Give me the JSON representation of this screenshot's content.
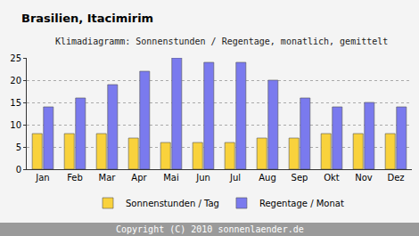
{
  "chart_data": {
    "type": "bar",
    "title": "Brasilien, Itacimirim",
    "subtitle": "Klimadiagramm: Sonnenstunden / Regentage, monatlich, gemittelt",
    "categories": [
      "Jan",
      "Feb",
      "Mar",
      "Apr",
      "Mai",
      "Jun",
      "Jul",
      "Aug",
      "Sep",
      "Okt",
      "Nov",
      "Dez"
    ],
    "series": [
      {
        "name": "Sonnenstunden / Tag",
        "color": "#f9d23c",
        "values": [
          8,
          8,
          8,
          7,
          6,
          6,
          6,
          7,
          7,
          8,
          8,
          8
        ]
      },
      {
        "name": "Regentage / Monat",
        "color": "#7a7aee",
        "values": [
          14,
          16,
          19,
          22,
          25,
          24,
          24,
          20,
          16,
          14,
          15,
          14
        ]
      }
    ],
    "ylim": [
      0,
      25
    ],
    "yticks": [
      0,
      5,
      10,
      15,
      20,
      25
    ],
    "grid": true,
    "legend": "bottom",
    "annotations": [
      "Copyright (C) 2010 sonnenlaender.de"
    ]
  }
}
